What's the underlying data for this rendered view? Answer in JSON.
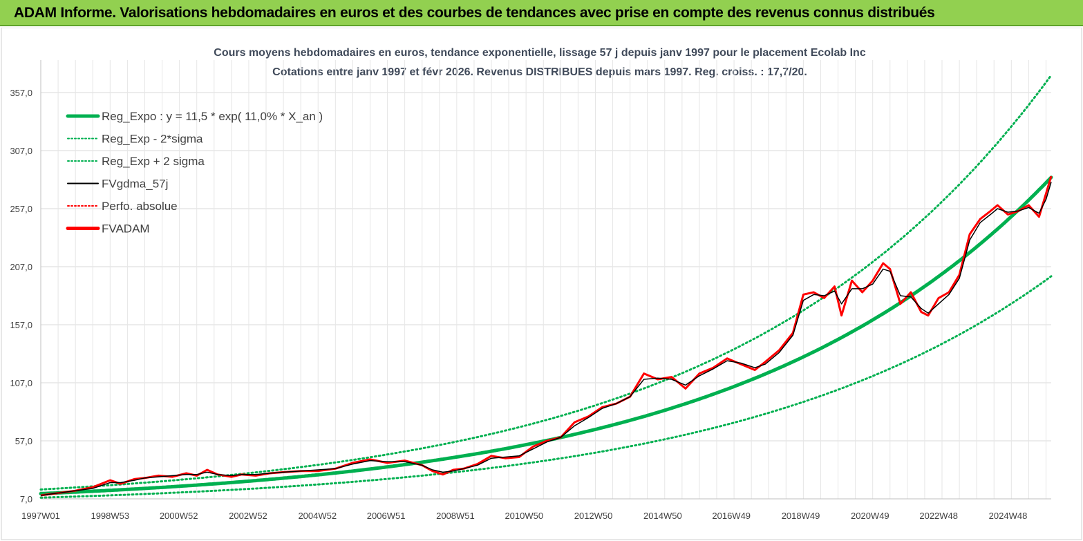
{
  "header": {
    "title": "ADAM Informe. Valorisations hebdomadaires en euros et des courbes de tendances avec prise en compte des revenus connus distribués"
  },
  "chart_data": {
    "type": "line",
    "title": "Cours moyens hebdomadaires en euros, tendance exponentielle, lissage 57 j depuis janv 1997 pour le placement Ecolab Inc",
    "subtitle": "Cotations entre janv 1997 et févr 2026. Revenus DISTRIBUES depuis mars 1997. Reg. croiss. : 17,7/20.",
    "xlabel": "",
    "ylabel": "",
    "ylim": [
      7,
      385
    ],
    "xlim": [
      1997.0,
      2026.15
    ],
    "grid": true,
    "legend_position": "top-left",
    "y_ticks": [
      "7,0",
      "57,0",
      "107,0",
      "157,0",
      "207,0",
      "257,0",
      "307,0",
      "357,0"
    ],
    "x_ticks": [
      "1997W01",
      "1998W53",
      "2000W52",
      "2002W52",
      "2004W52",
      "2006W51",
      "2008W51",
      "2010W50",
      "2012W50",
      "2014W50",
      "2016W49",
      "2018W49",
      "2020W49",
      "2022W48",
      "2024W48"
    ],
    "regression": {
      "a": 11.5,
      "rate": 0.11,
      "sigma_factor_upper": 1.31,
      "sigma_factor_lower": 0.7
    },
    "series": [
      {
        "name": "Reg_Expo : y = 11,5 * exp( 11,0% *  X_an )",
        "color": "#00b050",
        "style": "solid-thick"
      },
      {
        "name": "Reg_Exp - 2*sigma",
        "color": "#00b050",
        "style": "dotted"
      },
      {
        "name": "Reg_Exp + 2 sigma",
        "color": "#00b050",
        "style": "dotted"
      },
      {
        "name": "FVgdma_57j",
        "color": "#000000",
        "style": "solid"
      },
      {
        "name": "Perfo. absolue",
        "color": "#ff0000",
        "style": "dotted"
      },
      {
        "name": "FVADAM",
        "color": "#ff0000",
        "style": "solid-thick"
      }
    ],
    "price_x": [
      1997.0,
      1997.5,
      1998.0,
      1998.5,
      1999.0,
      1999.3,
      1999.7,
      2000.0,
      2000.4,
      2000.8,
      2001.2,
      2001.5,
      2001.8,
      2002.1,
      2002.5,
      2002.8,
      2003.2,
      2003.6,
      2004.0,
      2004.5,
      2005.0,
      2005.5,
      2006.0,
      2006.5,
      2007.0,
      2007.5,
      2008.0,
      2008.3,
      2008.6,
      2008.9,
      2009.2,
      2009.6,
      2010.0,
      2010.4,
      2010.8,
      2011.2,
      2011.6,
      2012.0,
      2012.4,
      2012.8,
      2013.2,
      2013.6,
      2014.0,
      2014.4,
      2014.8,
      2015.2,
      2015.6,
      2016.0,
      2016.4,
      2016.8,
      2017.2,
      2017.6,
      2017.9,
      2018.3,
      2018.7,
      2019.0,
      2019.3,
      2019.6,
      2019.9,
      2020.1,
      2020.4,
      2020.7,
      2021.0,
      2021.3,
      2021.5,
      2021.8,
      2022.1,
      2022.4,
      2022.6,
      2022.9,
      2023.2,
      2023.5,
      2023.8,
      2024.1,
      2024.4,
      2024.6,
      2024.9,
      2025.2,
      2025.5,
      2025.8,
      2026.0,
      2026.15
    ],
    "price_y": [
      10,
      12,
      14,
      17,
      23,
      20,
      24,
      25,
      27,
      26,
      29,
      27,
      32,
      28,
      26,
      28,
      27,
      29,
      30,
      31,
      31,
      33,
      38,
      41,
      38,
      40,
      36,
      31,
      28,
      32,
      33,
      37,
      44,
      42,
      43,
      52,
      57,
      60,
      73,
      78,
      86,
      89,
      95,
      115,
      110,
      112,
      102,
      115,
      120,
      128,
      123,
      118,
      125,
      135,
      150,
      183,
      185,
      180,
      190,
      165,
      195,
      185,
      195,
      210,
      205,
      175,
      185,
      168,
      165,
      180,
      185,
      200,
      235,
      248,
      255,
      260,
      252,
      255,
      260,
      250,
      270,
      285
    ],
    "smooth_y": [
      10,
      12,
      14,
      16,
      21,
      21,
      23,
      25,
      26,
      27,
      28,
      28,
      30,
      28,
      27,
      28,
      28,
      29,
      30,
      31,
      32,
      33,
      37,
      40,
      39,
      39,
      36,
      32,
      30,
      31,
      33,
      36,
      42,
      43,
      44,
      50,
      56,
      60,
      70,
      77,
      85,
      89,
      95,
      110,
      111,
      110,
      105,
      113,
      119,
      126,
      124,
      120,
      123,
      133,
      148,
      178,
      183,
      182,
      186,
      175,
      188,
      188,
      192,
      205,
      203,
      182,
      181,
      171,
      167,
      175,
      183,
      197,
      230,
      245,
      252,
      257,
      254,
      255,
      258,
      253,
      265,
      280
    ]
  }
}
